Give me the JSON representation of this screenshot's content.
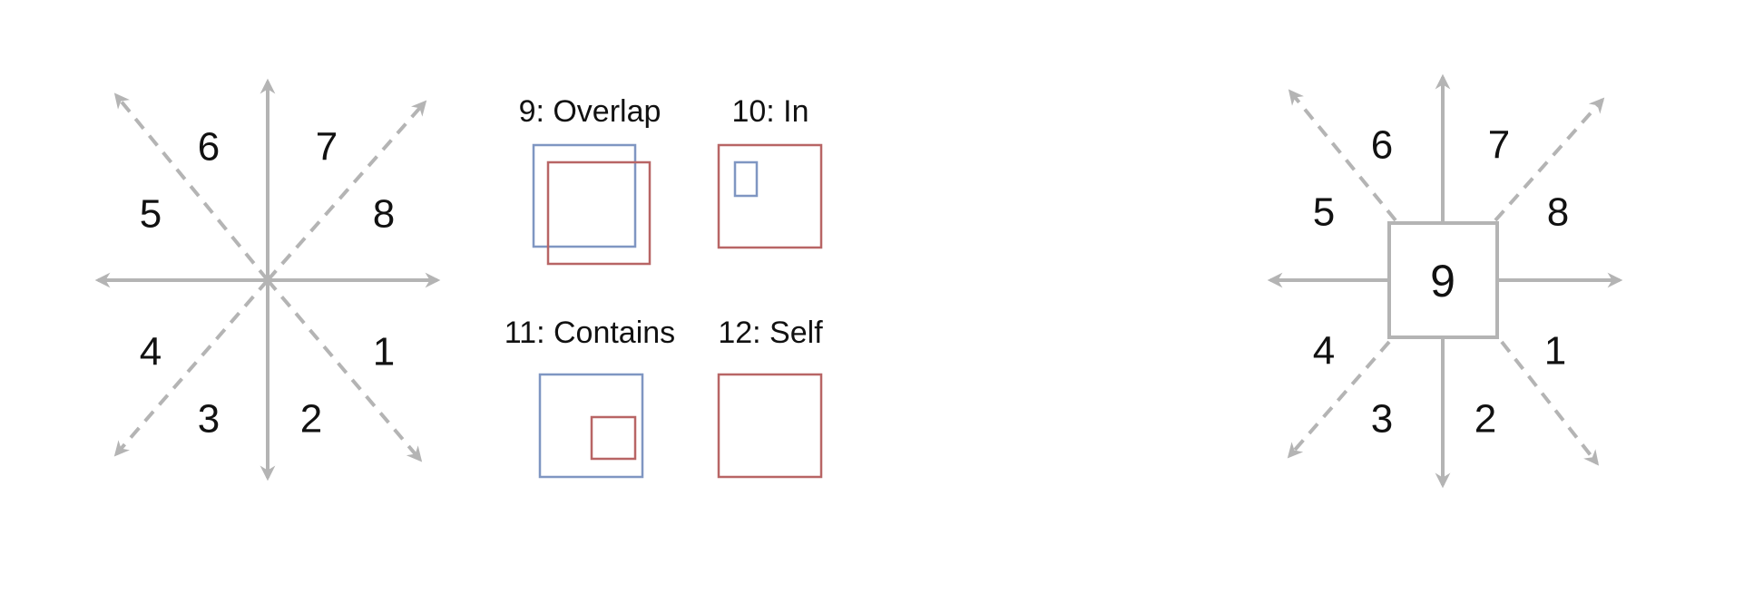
{
  "left_diagram": {
    "regions": [
      "1",
      "2",
      "3",
      "4",
      "5",
      "6",
      "7",
      "8"
    ]
  },
  "relations": [
    {
      "label": "9: Overlap"
    },
    {
      "label": "10: In"
    },
    {
      "label": "11: Contains"
    },
    {
      "label": "12: Self"
    }
  ],
  "right_diagram": {
    "regions": [
      "1",
      "2",
      "3",
      "4",
      "5",
      "6",
      "7",
      "8"
    ],
    "center_label": "9"
  },
  "colors": {
    "arrow": "#b4b4b4",
    "blue_box": "#7f96c2",
    "red_box": "#b86565",
    "center_box": "#b4b4b4"
  }
}
